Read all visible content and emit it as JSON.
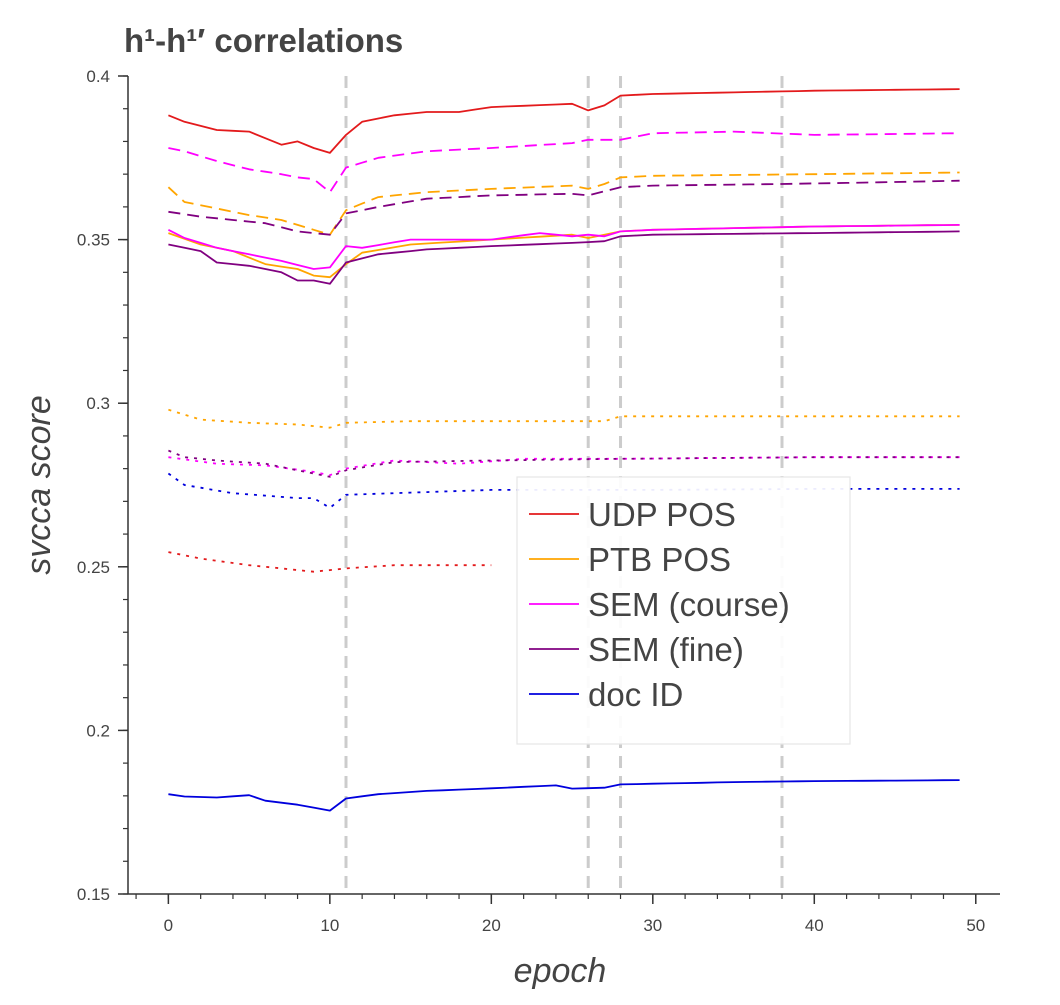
{
  "title": "h¹-h¹′ correlations",
  "chart_data": {
    "type": "line",
    "title": "h¹-h¹′ correlations",
    "xlabel": "epoch",
    "ylabel": "svcca score",
    "xlim": [
      -2.5,
      51.5
    ],
    "ylim": [
      0.15,
      0.4
    ],
    "x_ticks": [
      0,
      10,
      20,
      30,
      40,
      50
    ],
    "x_tick_labels": [
      "0",
      "10",
      "20",
      "30",
      "40",
      "50"
    ],
    "y_ticks": [
      0.15,
      0.2,
      0.25,
      0.3,
      0.35,
      0.4
    ],
    "y_tick_labels": [
      "0.15",
      "0.2",
      "0.25",
      "0.3",
      "0.35",
      "0.4"
    ],
    "grid": false,
    "legend_position": "center-right",
    "legend": [
      {
        "label": "UDP POS",
        "color": "#e31a1c"
      },
      {
        "label": "PTB POS",
        "color": "#ffa500"
      },
      {
        "label": "SEM (course)",
        "color": "#ff00ff"
      },
      {
        "label": "SEM (fine)",
        "color": "#800080"
      },
      {
        "label": "doc ID",
        "color": "#0000dd"
      }
    ],
    "vertical_lines": {
      "x": [
        11,
        26,
        28,
        38
      ],
      "color": "#cccccc",
      "style": "dashed"
    },
    "series": [
      {
        "group": "UDP POS",
        "style": "solid",
        "color": "#e31a1c",
        "knots": [
          [
            0,
            0.388
          ],
          [
            1,
            0.386
          ],
          [
            3,
            0.3835
          ],
          [
            5,
            0.383
          ],
          [
            7,
            0.379
          ],
          [
            8,
            0.38
          ],
          [
            9,
            0.378
          ],
          [
            10,
            0.3765
          ],
          [
            11,
            0.382
          ],
          [
            12,
            0.386
          ],
          [
            14,
            0.388
          ],
          [
            16,
            0.389
          ],
          [
            18,
            0.389
          ],
          [
            20,
            0.3905
          ],
          [
            25,
            0.3915
          ],
          [
            26,
            0.3895
          ],
          [
            27,
            0.391
          ],
          [
            28,
            0.394
          ],
          [
            30,
            0.3945
          ],
          [
            40,
            0.3955
          ],
          [
            49,
            0.396
          ]
        ]
      },
      {
        "group": "UDP POS",
        "style": "dotted",
        "color": "#e31a1c",
        "knots": [
          [
            0,
            0.2545
          ],
          [
            2,
            0.2525
          ],
          [
            5,
            0.2505
          ],
          [
            8,
            0.249
          ],
          [
            9,
            0.2485
          ],
          [
            10,
            0.249
          ],
          [
            11,
            0.2495
          ],
          [
            14,
            0.2505
          ],
          [
            18,
            0.2505
          ],
          [
            20,
            0.2505
          ]
        ]
      },
      {
        "group": "PTB POS",
        "style": "solid",
        "color": "#ffa500",
        "knots": [
          [
            0,
            0.352
          ],
          [
            2,
            0.3485
          ],
          [
            4,
            0.3465
          ],
          [
            6,
            0.3425
          ],
          [
            8,
            0.341
          ],
          [
            9,
            0.339
          ],
          [
            10,
            0.3385
          ],
          [
            11,
            0.3425
          ],
          [
            12,
            0.346
          ],
          [
            15,
            0.3485
          ],
          [
            20,
            0.35
          ],
          [
            25,
            0.3515
          ],
          [
            26,
            0.3505
          ],
          [
            27,
            0.3515
          ],
          [
            28,
            0.3525
          ],
          [
            30,
            0.353
          ],
          [
            40,
            0.354
          ],
          [
            49,
            0.3545
          ]
        ]
      },
      {
        "group": "PTB POS",
        "style": "dashed",
        "color": "#ffa500",
        "knots": [
          [
            0,
            0.366
          ],
          [
            1,
            0.3615
          ],
          [
            3,
            0.3595
          ],
          [
            5,
            0.3575
          ],
          [
            7,
            0.356
          ],
          [
            9,
            0.353
          ],
          [
            10,
            0.3515
          ],
          [
            11,
            0.359
          ],
          [
            13,
            0.363
          ],
          [
            16,
            0.3645
          ],
          [
            20,
            0.3655
          ],
          [
            25,
            0.3665
          ],
          [
            26,
            0.3655
          ],
          [
            27,
            0.367
          ],
          [
            28,
            0.369
          ],
          [
            30,
            0.3695
          ],
          [
            40,
            0.37
          ],
          [
            49,
            0.3705
          ]
        ]
      },
      {
        "group": "PTB POS",
        "style": "dotted",
        "color": "#ffa500",
        "knots": [
          [
            0,
            0.298
          ],
          [
            2,
            0.295
          ],
          [
            5,
            0.294
          ],
          [
            8,
            0.2935
          ],
          [
            10,
            0.2925
          ],
          [
            11,
            0.294
          ],
          [
            15,
            0.2945
          ],
          [
            20,
            0.2945
          ],
          [
            27,
            0.2945
          ],
          [
            28,
            0.296
          ],
          [
            40,
            0.296
          ],
          [
            49,
            0.296
          ]
        ]
      },
      {
        "group": "SEM (course)",
        "style": "solid",
        "color": "#ff00ff",
        "knots": [
          [
            0,
            0.353
          ],
          [
            1,
            0.3505
          ],
          [
            3,
            0.3475
          ],
          [
            5,
            0.3455
          ],
          [
            7,
            0.3435
          ],
          [
            9,
            0.341
          ],
          [
            10,
            0.3415
          ],
          [
            11,
            0.348
          ],
          [
            12,
            0.3475
          ],
          [
            15,
            0.35
          ],
          [
            20,
            0.35
          ],
          [
            23,
            0.352
          ],
          [
            25,
            0.351
          ],
          [
            26,
            0.3515
          ],
          [
            27,
            0.351
          ],
          [
            28,
            0.3525
          ],
          [
            30,
            0.353
          ],
          [
            40,
            0.354
          ],
          [
            49,
            0.3545
          ]
        ]
      },
      {
        "group": "SEM (course)",
        "style": "dashed",
        "color": "#ff00ff",
        "knots": [
          [
            0,
            0.378
          ],
          [
            1,
            0.377
          ],
          [
            3,
            0.374
          ],
          [
            5,
            0.3715
          ],
          [
            7,
            0.37
          ],
          [
            8,
            0.369
          ],
          [
            9,
            0.3685
          ],
          [
            10,
            0.3645
          ],
          [
            11,
            0.372
          ],
          [
            13,
            0.375
          ],
          [
            16,
            0.377
          ],
          [
            20,
            0.378
          ],
          [
            25,
            0.3795
          ],
          [
            26,
            0.3805
          ],
          [
            28,
            0.3805
          ],
          [
            30,
            0.3825
          ],
          [
            35,
            0.383
          ],
          [
            40,
            0.382
          ],
          [
            49,
            0.3825
          ]
        ]
      },
      {
        "group": "SEM (course)",
        "style": "dotted",
        "color": "#ff00ff",
        "knots": [
          [
            0,
            0.2835
          ],
          [
            3,
            0.2815
          ],
          [
            6,
            0.281
          ],
          [
            9,
            0.279
          ],
          [
            10,
            0.278
          ],
          [
            11,
            0.28
          ],
          [
            14,
            0.2825
          ],
          [
            18,
            0.2815
          ],
          [
            22,
            0.283
          ],
          [
            28,
            0.283
          ],
          [
            40,
            0.2835
          ],
          [
            49,
            0.2835
          ]
        ]
      },
      {
        "group": "SEM (fine)",
        "style": "solid",
        "color": "#800080",
        "knots": [
          [
            0,
            0.3485
          ],
          [
            2,
            0.3465
          ],
          [
            3,
            0.343
          ],
          [
            5,
            0.342
          ],
          [
            7,
            0.34
          ],
          [
            8,
            0.3375
          ],
          [
            9,
            0.3375
          ],
          [
            10,
            0.3365
          ],
          [
            11,
            0.343
          ],
          [
            13,
            0.3455
          ],
          [
            16,
            0.347
          ],
          [
            20,
            0.348
          ],
          [
            25,
            0.349
          ],
          [
            27,
            0.3495
          ],
          [
            28,
            0.351
          ],
          [
            30,
            0.3515
          ],
          [
            40,
            0.352
          ],
          [
            49,
            0.3525
          ]
        ]
      },
      {
        "group": "SEM (fine)",
        "style": "dashed",
        "color": "#800080",
        "knots": [
          [
            0,
            0.3585
          ],
          [
            2,
            0.357
          ],
          [
            4,
            0.356
          ],
          [
            6,
            0.355
          ],
          [
            8,
            0.3525
          ],
          [
            9,
            0.352
          ],
          [
            10,
            0.3515
          ],
          [
            11,
            0.358
          ],
          [
            13,
            0.36
          ],
          [
            16,
            0.3625
          ],
          [
            20,
            0.3635
          ],
          [
            25,
            0.364
          ],
          [
            26,
            0.3635
          ],
          [
            28,
            0.366
          ],
          [
            30,
            0.3665
          ],
          [
            38,
            0.367
          ],
          [
            44,
            0.3675
          ],
          [
            49,
            0.368
          ]
        ]
      },
      {
        "group": "SEM (fine)",
        "style": "dotted",
        "color": "#800080",
        "knots": [
          [
            0,
            0.2855
          ],
          [
            1,
            0.2835
          ],
          [
            3,
            0.2825
          ],
          [
            6,
            0.2815
          ],
          [
            9,
            0.2785
          ],
          [
            10,
            0.2775
          ],
          [
            11,
            0.2795
          ],
          [
            14,
            0.282
          ],
          [
            20,
            0.2825
          ],
          [
            28,
            0.283
          ],
          [
            40,
            0.2835
          ],
          [
            49,
            0.2835
          ]
        ]
      },
      {
        "group": "doc ID",
        "style": "solid",
        "color": "#0000dd",
        "knots": [
          [
            0,
            0.1805
          ],
          [
            1,
            0.1798
          ],
          [
            3,
            0.1795
          ],
          [
            5,
            0.1802
          ],
          [
            6,
            0.1785
          ],
          [
            8,
            0.1773
          ],
          [
            10,
            0.1755
          ],
          [
            11,
            0.1792
          ],
          [
            13,
            0.1805
          ],
          [
            16,
            0.1815
          ],
          [
            20,
            0.1823
          ],
          [
            24,
            0.1832
          ],
          [
            25,
            0.1822
          ],
          [
            27,
            0.1825
          ],
          [
            28,
            0.1835
          ],
          [
            35,
            0.1842
          ],
          [
            40,
            0.1845
          ],
          [
            49,
            0.1848
          ]
        ]
      },
      {
        "group": "doc ID",
        "style": "dotted",
        "color": "#0000dd",
        "knots": [
          [
            0,
            0.2785
          ],
          [
            1,
            0.275
          ],
          [
            4,
            0.2725
          ],
          [
            8,
            0.271
          ],
          [
            9,
            0.271
          ],
          [
            10,
            0.268
          ],
          [
            11,
            0.272
          ],
          [
            14,
            0.2725
          ],
          [
            20,
            0.2735
          ],
          [
            30,
            0.2735
          ],
          [
            40,
            0.2738
          ],
          [
            49,
            0.2738
          ]
        ]
      }
    ]
  }
}
